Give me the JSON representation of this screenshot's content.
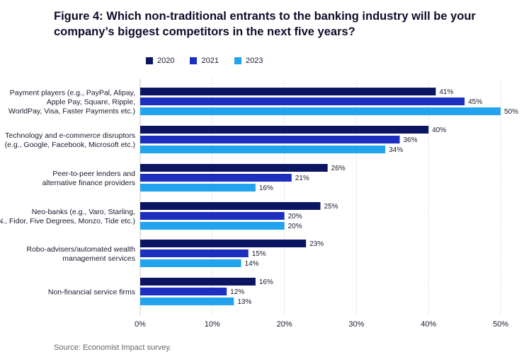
{
  "title": "Figure 4: Which non-traditional entrants to the banking industry will be your company’s biggest competitors in the next five years?",
  "source": "Source: Economist Impact survey.",
  "colors": {
    "2020": "#0b1561",
    "2021": "#1c2fbf",
    "2023": "#21a3ee"
  },
  "chart_data": {
    "type": "bar",
    "orientation": "horizontal",
    "categories": [
      [
        "Payment players  (e.g., PayPal, Alipay,",
        "Apple Pay, Square, Ripple,",
        "WorldPay, Visa, Faster Payments etc.)"
      ],
      [
        "Technology and e-commerce disruptors",
        "(e.g., Google, Facebook, Microsoft etc.)"
      ],
      [
        "Peer-to-peer lenders and",
        "alternative finance providers"
      ],
      [
        "Neo-banks (e.g., Varo, Starling,",
        "N., Fidor, Five Degrees, Monzo, Tide etc.)"
      ],
      [
        "Robo-advisers/automated wealth",
        "management services"
      ],
      [
        "Non-financial service firms"
      ]
    ],
    "series": [
      {
        "name": "2020",
        "values": [
          41,
          40,
          26,
          25,
          23,
          16
        ]
      },
      {
        "name": "2021",
        "values": [
          45,
          36,
          21,
          20,
          15,
          12
        ]
      },
      {
        "name": "2023",
        "values": [
          50,
          34,
          16,
          20,
          14,
          13
        ]
      }
    ],
    "xlim": [
      0,
      50
    ],
    "xticks": [
      "0%",
      "10%",
      "20%",
      "30%",
      "40%",
      "50%"
    ],
    "value_suffix": "%",
    "grid": true,
    "legend_position": "top-left"
  }
}
